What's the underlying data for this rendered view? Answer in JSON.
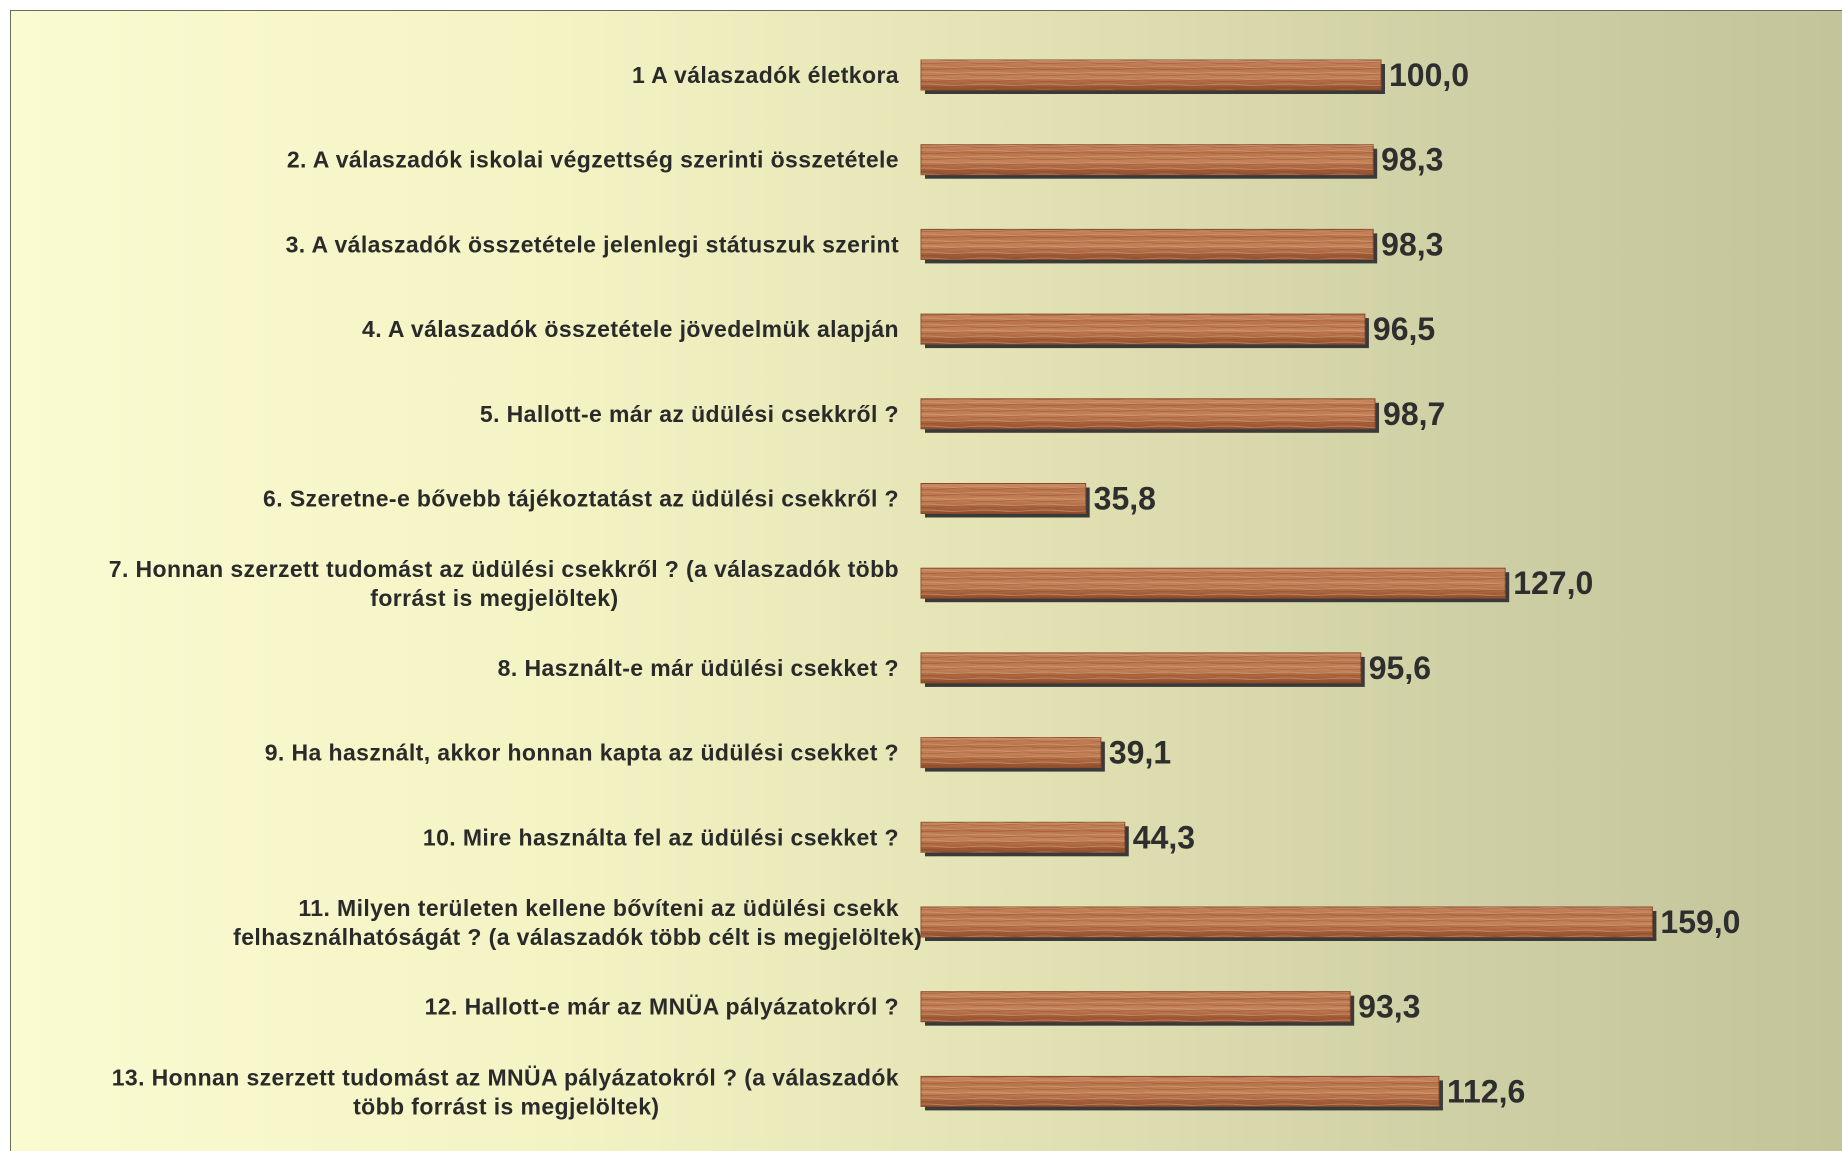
{
  "chart_data": {
    "type": "bar",
    "orientation": "horizontal",
    "categories": [
      "1 A válaszadók életkora",
      "2. A válaszadók iskolai végzettség szerinti összetétele",
      "3. A válaszadók összetétele jelenlegi státuszuk szerint",
      "4. A válaszadók összetétele jövedelmük alapján",
      "5. Hallott-e már az üdülési csekkről ?",
      "6. Szeretne-e bővebb tájékoztatást az üdülési csekkről ?",
      "7. Honnan szerzett tudomást az üdülési csekkről ? (a válaszadók több forrást is megjelöltek)",
      "8. Használt-e már üdülési csekket ?",
      "9. Ha használt, akkor honnan kapta az üdülési csekket ?",
      "10. Mire használta fel az üdülési csekket ?",
      "11. Milyen területen kellene bővíteni az üdülési csekk felhasználhatóságát ? (a válaszadók több célt is megjelöltek)",
      "12. Hallott-e már az MNÜA pályázatokról ?",
      "13. Honnan szerzett tudomást az MNÜA pályázatokról ? (a válaszadók több forrást is megjelöltek)"
    ],
    "category_lines": [
      [
        "1 A válaszadók életkora"
      ],
      [
        "2. A válaszadók iskolai végzettség szerinti összetétele"
      ],
      [
        "3. A válaszadók összetétele jelenlegi státuszuk szerint"
      ],
      [
        "4. A válaszadók összetétele jövedelmük alapján"
      ],
      [
        "5. Hallott-e már az üdülési csekkről ?"
      ],
      [
        "6. Szeretne-e bővebb tájékoztatást az üdülési csekkről ?"
      ],
      [
        "7. Honnan szerzett tudomást az üdülési csekkről ? (a válaszadók több",
        "forrást is megjelöltek)"
      ],
      [
        "8. Használt-e már üdülési csekket ?"
      ],
      [
        "9. Ha használt, akkor honnan kapta az üdülési csekket ?"
      ],
      [
        "10. Mire használta fel az üdülési csekket ?"
      ],
      [
        "11. Milyen területen kellene bővíteni az üdülési csekk",
        "felhasználhatóságát ? (a válaszadók több célt is megjelöltek)"
      ],
      [
        "12. Hallott-e már az MNÜA pályázatokról ?"
      ],
      [
        "13. Honnan szerzett tudomást az MNÜA pályázatokról ? (a válaszadók",
        "több forrást is megjelöltek)"
      ]
    ],
    "values": [
      100.0,
      98.3,
      98.3,
      96.5,
      98.7,
      35.8,
      127.0,
      95.6,
      39.1,
      44.3,
      159.0,
      93.3,
      112.6
    ],
    "value_labels": [
      "100,0",
      "98,3",
      "98,3",
      "96,5",
      "98,7",
      "35,8",
      "127,0",
      "95,6",
      "39,1",
      "44,3",
      "159,0",
      "93,3",
      "112,6"
    ],
    "xlim": [
      0,
      200
    ],
    "grid": false,
    "legend": "none",
    "colors": {
      "bar_fill": "#b66d45",
      "bar_light": "#d49a72",
      "bar_dark": "#8a4a2b",
      "bar_shadow": "#3a3a3a",
      "label_text": "#2a2a2a",
      "value_text": "#2e2e2e",
      "background_left": "#fbfbd2",
      "background_right": "#c4c49b"
    }
  }
}
